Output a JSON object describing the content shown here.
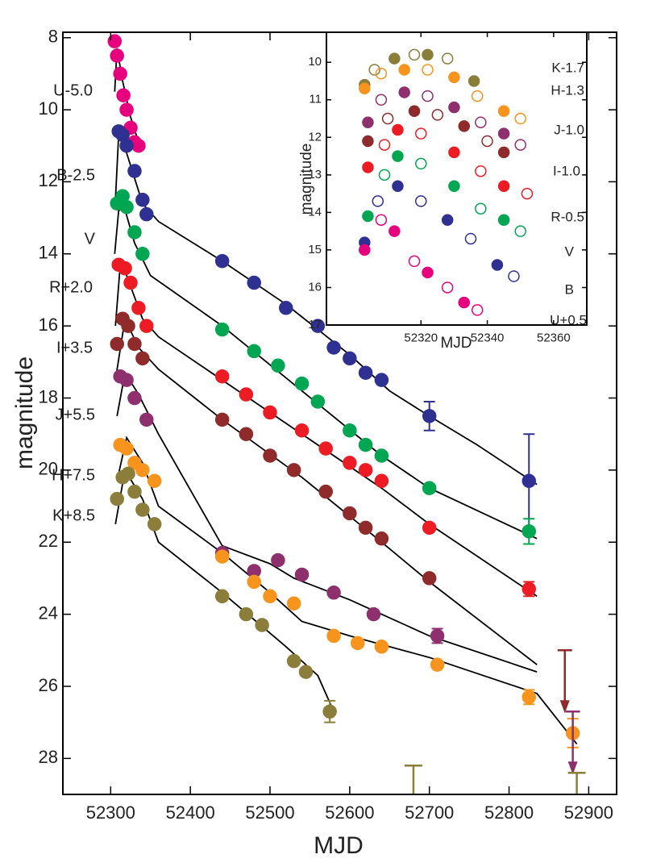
{
  "chart_data": [
    {
      "type": "scatter",
      "x_label": "MJD",
      "y_label": "magnitude",
      "xlim": [
        52240,
        52935
      ],
      "ylim": [
        7.85,
        29
      ],
      "y_inverted": true,
      "xticks": [
        52300,
        52400,
        52500,
        52600,
        52700,
        52800,
        52900
      ],
      "yticks": [
        8,
        10,
        12,
        14,
        16,
        18,
        20,
        22,
        24,
        26,
        28
      ],
      "series": [
        {
          "name": "U-5.0",
          "color": "#e6007e",
          "x": [
            52305,
            52308,
            52312,
            52316,
            52320,
            52325,
            52330,
            52335
          ],
          "values": [
            8.1,
            8.5,
            9.0,
            9.6,
            10.0,
            10.5,
            10.9,
            11.0
          ],
          "errors": [
            null,
            null,
            null,
            null,
            null,
            null,
            null,
            null
          ],
          "model_x": [
            52305,
            52308,
            52315,
            52325,
            52335
          ],
          "model_y": [
            9.5,
            8.3,
            9.2,
            10.2,
            10.9
          ]
        },
        {
          "name": "B-2.5",
          "color": "#2e3192",
          "x": [
            52310,
            52315,
            52320,
            52330,
            52340,
            52345,
            52440,
            52480,
            52520,
            52560,
            52580,
            52600,
            52620,
            52640,
            52700,
            52825
          ],
          "values": [
            10.6,
            10.7,
            11.0,
            11.7,
            12.5,
            12.9,
            14.2,
            14.8,
            15.5,
            16.0,
            16.6,
            16.9,
            17.3,
            17.5,
            18.5,
            20.3
          ],
          "errors": [
            null,
            null,
            null,
            null,
            null,
            null,
            null,
            null,
            null,
            null,
            null,
            null,
            null,
            null,
            0.4,
            1.3
          ],
          "model_x": [
            52306,
            52310,
            52320,
            52340,
            52360,
            52440,
            52520,
            52600,
            52650,
            52700,
            52760,
            52835
          ],
          "model_y": [
            12.5,
            10.7,
            11.2,
            12.6,
            13.1,
            14.2,
            15.4,
            16.8,
            17.8,
            18.5,
            19.3,
            20.4
          ]
        },
        {
          "name": "V",
          "color": "#00a651",
          "x": [
            52308,
            52315,
            52320,
            52330,
            52340,
            52440,
            52480,
            52510,
            52540,
            52560,
            52600,
            52620,
            52640,
            52700,
            52825
          ],
          "values": [
            12.6,
            12.4,
            12.7,
            13.4,
            14.0,
            16.1,
            16.7,
            17.1,
            17.6,
            18.1,
            18.9,
            19.3,
            19.6,
            20.5,
            21.7
          ],
          "errors": [
            null,
            null,
            null,
            null,
            null,
            null,
            null,
            null,
            null,
            null,
            null,
            null,
            null,
            null,
            0.35
          ],
          "model_x": [
            52305,
            52310,
            52317,
            52330,
            52350,
            52440,
            52540,
            52640,
            52700,
            52835
          ],
          "model_y": [
            14.0,
            12.8,
            12.7,
            13.7,
            14.6,
            16.0,
            17.8,
            19.6,
            20.5,
            21.9
          ]
        },
        {
          "name": "R+2.0",
          "color": "#ed1c24",
          "x": [
            52310,
            52318,
            52325,
            52335,
            52345,
            52440,
            52470,
            52500,
            52540,
            52570,
            52600,
            52620,
            52640,
            52700,
            52825
          ],
          "values": [
            14.3,
            14.4,
            14.8,
            15.5,
            16.0,
            17.4,
            17.9,
            18.4,
            18.9,
            19.4,
            19.8,
            20.0,
            20.3,
            21.6,
            23.3
          ],
          "errors": [
            null,
            null,
            null,
            null,
            null,
            null,
            null,
            null,
            null,
            null,
            null,
            null,
            null,
            null,
            0.2
          ],
          "model_x": [
            52306,
            52312,
            52320,
            52340,
            52360,
            52440,
            52540,
            52640,
            52700,
            52835
          ],
          "model_y": [
            16.0,
            14.3,
            14.6,
            15.8,
            16.3,
            17.5,
            19.0,
            20.5,
            21.5,
            23.5
          ]
        },
        {
          "name": "I+3.5",
          "color": "#8f2b2b",
          "x": [
            52308,
            52315,
            52322,
            52330,
            52340,
            52440,
            52470,
            52500,
            52530,
            52570,
            52600,
            52620,
            52640,
            52700
          ],
          "values": [
            16.5,
            15.8,
            16.0,
            16.5,
            16.9,
            18.6,
            19.0,
            19.6,
            20.0,
            20.6,
            21.2,
            21.6,
            21.9,
            23.0
          ],
          "errors": [
            null,
            null,
            null,
            null,
            null,
            null,
            null,
            null,
            null,
            null,
            null,
            null,
            null,
            null
          ],
          "model_x": [
            52306,
            52318,
            52335,
            52360,
            52440,
            52540,
            52640,
            52700,
            52835
          ],
          "model_y": [
            17.5,
            15.8,
            16.6,
            17.2,
            18.6,
            20.2,
            22.0,
            23.1,
            25.4
          ]
        },
        {
          "name": "J+5.5",
          "color": "#8e2f6e",
          "x": [
            52312,
            52320,
            52330,
            52345,
            52440,
            52480,
            52510,
            52540,
            52580,
            52630,
            52710
          ],
          "values": [
            17.4,
            17.5,
            18.0,
            18.6,
            22.3,
            22.8,
            22.5,
            22.9,
            23.4,
            24.0,
            24.6
          ],
          "errors": [
            null,
            null,
            null,
            null,
            null,
            null,
            null,
            null,
            null,
            null,
            0.2
          ],
          "model_x": [
            52308,
            52318,
            52335,
            52360,
            52440,
            52500,
            52530,
            52600,
            52700,
            52835
          ],
          "model_y": [
            18.5,
            17.3,
            17.9,
            19.0,
            22.1,
            22.6,
            23.0,
            23.6,
            24.6,
            25.6
          ]
        },
        {
          "name": "H+7.5",
          "color": "#f7941d",
          "x": [
            52312,
            52320,
            52330,
            52340,
            52355,
            52440,
            52480,
            52500,
            52530,
            52580,
            52610,
            52640,
            52710,
            52825,
            52880
          ],
          "values": [
            19.3,
            19.4,
            19.8,
            20.0,
            20.3,
            22.4,
            23.1,
            23.5,
            23.7,
            24.6,
            24.8,
            24.9,
            25.4,
            26.3,
            27.3
          ],
          "errors": [
            null,
            null,
            null,
            null,
            null,
            null,
            null,
            null,
            null,
            null,
            null,
            null,
            null,
            0.2,
            0.4
          ],
          "model_x": [
            52308,
            52320,
            52340,
            52360,
            52440,
            52500,
            52540,
            52600,
            52700,
            52835,
            52885
          ],
          "model_y": [
            20.3,
            19.1,
            19.8,
            21.0,
            22.3,
            23.4,
            24.2,
            24.6,
            25.2,
            26.2,
            27.6
          ]
        },
        {
          "name": "K+8.5",
          "color": "#8b7d3a",
          "x": [
            52308,
            52315,
            52322,
            52330,
            52340,
            52355,
            52440,
            52470,
            52490,
            52530,
            52545,
            52575
          ],
          "values": [
            20.8,
            20.2,
            20.1,
            20.6,
            21.1,
            21.5,
            23.5,
            24.0,
            24.3,
            25.3,
            25.6,
            26.7
          ],
          "errors": [
            null,
            null,
            null,
            null,
            null,
            null,
            null,
            null,
            null,
            null,
            null,
            0.3
          ],
          "model_x": [
            52306,
            52318,
            52340,
            52360,
            52440,
            52520,
            52560,
            52578
          ],
          "model_y": [
            21.5,
            20.0,
            20.8,
            22.0,
            23.4,
            24.9,
            25.7,
            26.6
          ]
        }
      ],
      "upper_limits": [
        {
          "x": 52870,
          "y": 25.0,
          "color": "#8f2b2b",
          "arrow": true
        },
        {
          "x": 52880,
          "y": 26.7,
          "color": "#8e2f6e",
          "arrow": true
        },
        {
          "x": 52680,
          "y": 28.2,
          "color": "#8b7d3a",
          "arrow": false
        },
        {
          "x": 52885,
          "y": 28.4,
          "color": "#8b7d3a",
          "arrow": false
        }
      ]
    },
    {
      "type": "scatter",
      "x_label": "MJD",
      "y_label": "magnitude",
      "xlim": [
        52291.5,
        52370
      ],
      "ylim": [
        9.2,
        17
      ],
      "y_inverted": true,
      "xticks": [
        52320,
        52340,
        52360
      ],
      "yticks": [
        10,
        11,
        12,
        13,
        14,
        15,
        16,
        17
      ],
      "series": [
        {
          "name": "K-1.7",
          "color": "#8b7d3a",
          "x": [
            52303,
            52306,
            52312,
            52318,
            52322,
            52328,
            52336
          ],
          "values": [
            10.6,
            10.2,
            9.9,
            9.8,
            9.8,
            9.9,
            10.5
          ]
        },
        {
          "name": "H-1.3",
          "color": "#f7941d",
          "x": [
            52303,
            52308,
            52315,
            52322,
            52330,
            52337,
            52345,
            52350
          ],
          "values": [
            10.7,
            10.3,
            10.2,
            10.2,
            10.4,
            10.9,
            11.3,
            11.5
          ]
        },
        {
          "name": "J-1.0",
          "color": "#8e2f6e",
          "x": [
            52304,
            52308,
            52315,
            52322,
            52330,
            52338,
            52345,
            52350
          ],
          "values": [
            11.6,
            11.0,
            10.8,
            10.9,
            11.2,
            11.6,
            11.9,
            12.2
          ]
        },
        {
          "name": "I-1.0",
          "color": "#8f2b2b",
          "x": [
            52304,
            52310,
            52318,
            52325,
            52333,
            52340,
            52345
          ],
          "values": [
            12.1,
            11.5,
            11.3,
            11.4,
            11.7,
            12.1,
            12.4
          ]
        },
        {
          "name": "R-0.5",
          "color": "#ed1c24",
          "x": [
            52304,
            52309,
            52313,
            52320,
            52330,
            52338,
            52345,
            52352
          ],
          "values": [
            12.8,
            12.2,
            11.8,
            11.9,
            12.4,
            12.9,
            13.3,
            13.5
          ]
        },
        {
          "name": "V",
          "color": "#00a651",
          "x": [
            52304,
            52309,
            52313,
            52320,
            52330,
            52338,
            52345,
            52350
          ],
          "values": [
            14.1,
            13.0,
            12.5,
            12.7,
            13.3,
            13.9,
            14.2,
            14.5
          ]
        },
        {
          "name": "B",
          "color": "#2e3192",
          "x": [
            52303,
            52307,
            52313,
            52320,
            52328,
            52335,
            52343,
            52348
          ],
          "values": [
            14.8,
            13.7,
            13.3,
            13.7,
            14.2,
            14.7,
            15.4,
            15.7
          ]
        },
        {
          "name": "U+0.5",
          "color": "#e6007e",
          "x": [
            52303,
            52308,
            52312,
            52318,
            52322,
            52328,
            52333,
            52337
          ],
          "values": [
            15.0,
            14.2,
            14.5,
            15.3,
            15.6,
            16.0,
            16.4,
            16.6
          ]
        }
      ]
    }
  ]
}
